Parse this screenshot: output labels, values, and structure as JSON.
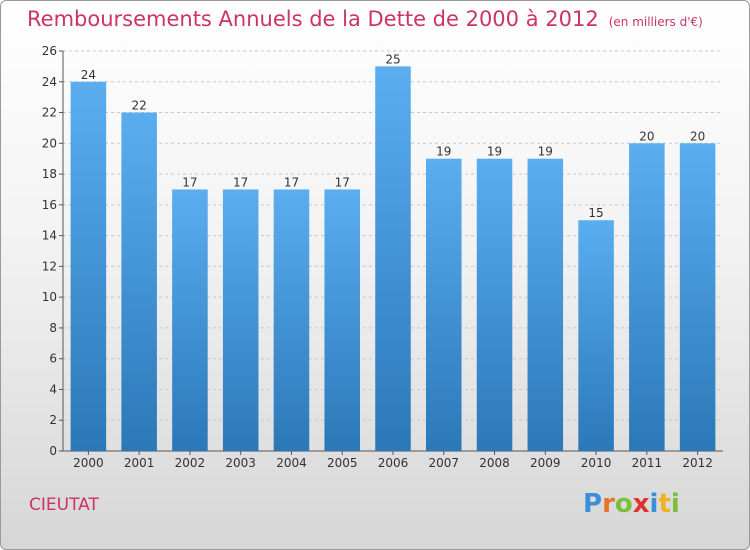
{
  "title": "Remboursements Annuels de la Dette de 2000 à 2012",
  "unit": "(en milliers d'€)",
  "commune": "CIEUTAT",
  "logo": {
    "text": "Proxiti",
    "letters": [
      {
        "char": "P",
        "color": "#3a8fd8"
      },
      {
        "char": "r",
        "color": "#e8742a"
      },
      {
        "char": "o",
        "color": "#7bbf3a"
      },
      {
        "char": "x",
        "color": "#e0322c"
      },
      {
        "char": "i",
        "color": "#3a8fd8"
      },
      {
        "char": "t",
        "color": "#f0b21e"
      },
      {
        "char": "i",
        "color": "#7bbf3a"
      }
    ]
  },
  "colors": {
    "bar_top": "#5aaef0",
    "bar_bottom": "#2b78b8",
    "title": "#cc3366",
    "grid": "#c8c8c8"
  },
  "chart_data": {
    "type": "bar",
    "categories": [
      "2000",
      "2001",
      "2002",
      "2003",
      "2004",
      "2005",
      "2006",
      "2007",
      "2008",
      "2009",
      "2010",
      "2011",
      "2012"
    ],
    "values": [
      24,
      22,
      17,
      17,
      17,
      17,
      25,
      19,
      19,
      19,
      15,
      20,
      20
    ],
    "ylim": [
      0,
      26
    ],
    "yticks": [
      0,
      2,
      4,
      6,
      8,
      10,
      12,
      14,
      16,
      18,
      20,
      22,
      24,
      26
    ],
    "grid": true,
    "data_labels": true
  }
}
